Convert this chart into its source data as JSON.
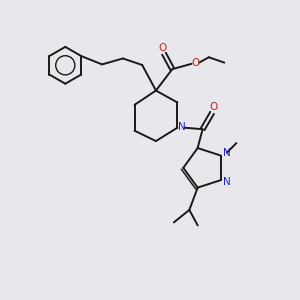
{
  "bg_color": "#e8e8ec",
  "bond_color": "#1a1a1a",
  "N_color": "#2222cc",
  "O_color": "#cc2222",
  "fig_width": 3.0,
  "fig_height": 3.0,
  "dpi": 100,
  "xlim": [
    0,
    10
  ],
  "ylim": [
    0,
    10
  ]
}
